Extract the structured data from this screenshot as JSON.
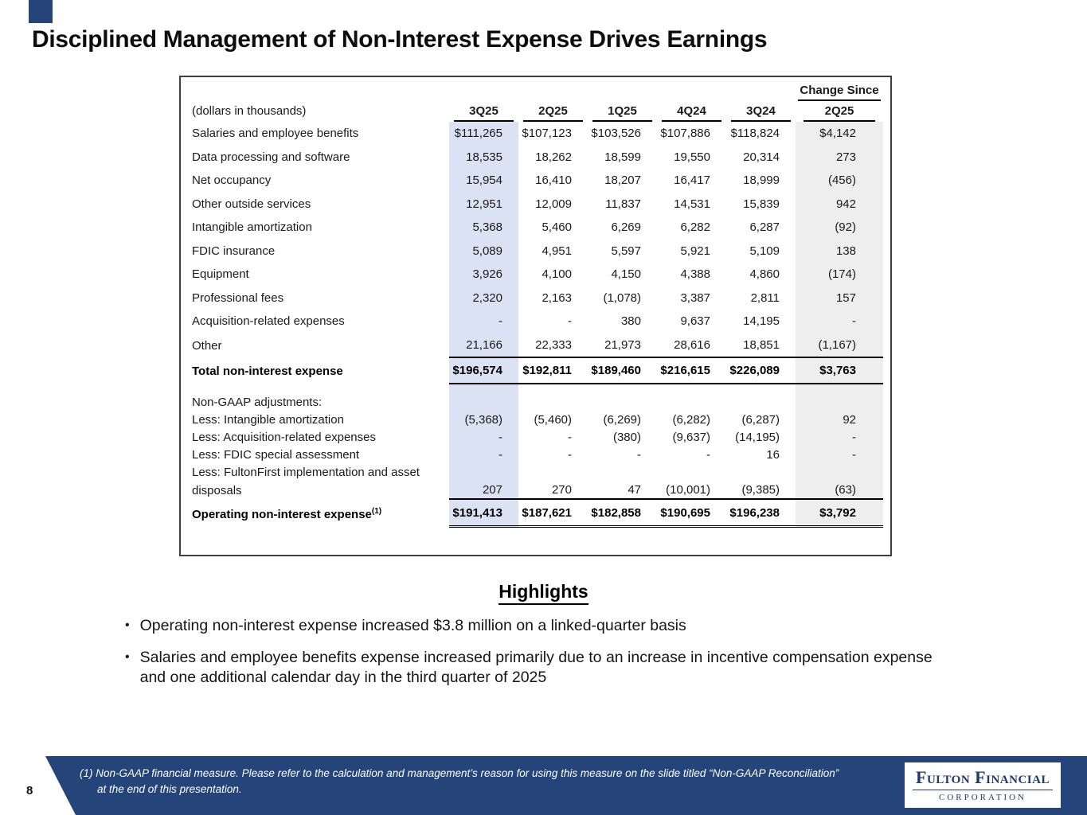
{
  "slide": {
    "title": "Disciplined Management of Non-Interest Expense Drives Earnings",
    "page_number": "8"
  },
  "table": {
    "change_since_label": "Change Since",
    "corner_label": "(dollars in thousands)",
    "column_headers": [
      "3Q25",
      "2Q25",
      "1Q25",
      "4Q24",
      "3Q24"
    ],
    "change_column_header": "2Q25",
    "rows": [
      {
        "type": "data",
        "label": "Salaries and employee benefits",
        "values": [
          "$111,265",
          "$107,123",
          "$103,526",
          "$107,886",
          "$118,824",
          "$4,142"
        ]
      },
      {
        "type": "data",
        "label": "Data processing and software",
        "values": [
          "18,535",
          "18,262",
          "18,599",
          "19,550",
          "20,314",
          "273"
        ]
      },
      {
        "type": "data",
        "label": "Net occupancy",
        "values": [
          "15,954",
          "16,410",
          "18,207",
          "16,417",
          "18,999",
          "(456)"
        ]
      },
      {
        "type": "data",
        "label": "Other outside services",
        "values": [
          "12,951",
          "12,009",
          "11,837",
          "14,531",
          "15,839",
          "942"
        ]
      },
      {
        "type": "data",
        "label": "Intangible amortization",
        "values": [
          "5,368",
          "5,460",
          "6,269",
          "6,282",
          "6,287",
          "(92)"
        ]
      },
      {
        "type": "data",
        "label": "FDIC insurance",
        "values": [
          "5,089",
          "4,951",
          "5,597",
          "5,921",
          "5,109",
          "138"
        ]
      },
      {
        "type": "data",
        "label": "Equipment",
        "values": [
          "3,926",
          "4,100",
          "4,150",
          "4,388",
          "4,860",
          "(174)"
        ]
      },
      {
        "type": "data",
        "label": "Professional fees",
        "values": [
          "2,320",
          "2,163",
          "(1,078)",
          "3,387",
          "2,811",
          "157"
        ]
      },
      {
        "type": "data",
        "label": "Acquisition-related expenses",
        "values": [
          "-",
          "-",
          "380",
          "9,637",
          "14,195",
          "-"
        ]
      },
      {
        "type": "data",
        "label": "Other",
        "values": [
          "21,166",
          "22,333",
          "21,973",
          "28,616",
          "18,851",
          "(1,167)"
        ]
      },
      {
        "type": "total",
        "label": "Total non-interest expense",
        "values": [
          "$196,574",
          "$192,811",
          "$189,460",
          "$216,615",
          "$226,089",
          "$3,763"
        ]
      },
      {
        "type": "section",
        "label": "Non-GAAP adjustments:",
        "values": [
          "",
          "",
          "",
          "",
          "",
          ""
        ]
      },
      {
        "type": "less",
        "label": "Less: Intangible amortization",
        "values": [
          "(5,368)",
          "(5,460)",
          "(6,269)",
          "(6,282)",
          "(6,287)",
          "92"
        ]
      },
      {
        "type": "less",
        "label": "Less: Acquisition-related expenses",
        "values": [
          "-",
          "-",
          "(380)",
          "(9,637)",
          "(14,195)",
          "-"
        ]
      },
      {
        "type": "less",
        "label": "Less: FDIC special assessment",
        "values": [
          "-",
          "-",
          "-",
          "-",
          "16",
          "-"
        ]
      },
      {
        "type": "less",
        "label": "Less: FultonFirst implementation and asset",
        "values": [
          "",
          "",
          "",
          "",
          "",
          ""
        ]
      },
      {
        "type": "less",
        "label": "disposals",
        "values": [
          "207",
          "270",
          "47",
          "(10,001)",
          "(9,385)",
          "(63)"
        ]
      },
      {
        "type": "operating",
        "label": "Operating non-interest expense",
        "label_sup": "(1)",
        "values": [
          "$191,413",
          "$187,621",
          "$182,858",
          "$190,695",
          "$196,238",
          "$3,792"
        ]
      }
    ]
  },
  "highlights": {
    "heading": "Highlights",
    "bullets": [
      "Operating non-interest expense increased $3.8 million on a linked-quarter basis",
      "Salaries and employee benefits expense increased primarily due to an increase in incentive compensation expense and one additional calendar day in the third quarter of 2025"
    ]
  },
  "footer": {
    "footnote": "(1) Non-GAAP financial measure.  Please refer to the calculation and management’s reason for using this measure on the slide titled “Non-GAAP Reconciliation” at the end of this presentation.",
    "logo_name": "Fulton Financial",
    "logo_subtitle": "CORPORATION"
  },
  "colors": {
    "navy": "#254479",
    "highlight_blue": "#dbe2f3",
    "highlight_gray": "#eeeeee"
  }
}
